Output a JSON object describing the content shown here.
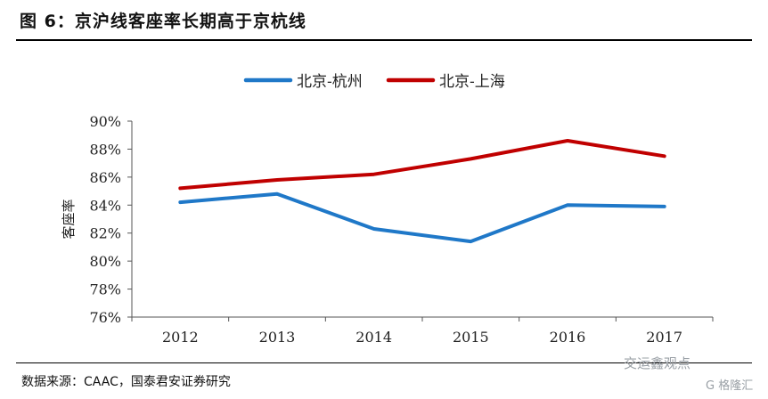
{
  "figure_title": "图 6：京沪线客座率长期高于京杭线",
  "source_note": "数据来源：CAAC，国泰君安证券研究",
  "watermark": "交运鑫观点",
  "watermark2": "G 格隆汇",
  "chart_data": {
    "type": "line",
    "title": "",
    "xlabel": "",
    "ylabel": "客座率",
    "x": [
      "2012",
      "2013",
      "2014",
      "2015",
      "2016",
      "2017"
    ],
    "ylim": [
      76,
      90
    ],
    "yticks": [
      76,
      78,
      80,
      82,
      84,
      86,
      88,
      90
    ],
    "ytick_labels": [
      "76%",
      "78%",
      "80%",
      "82%",
      "84%",
      "86%",
      "88%",
      "90%"
    ],
    "legend_position": "top-center",
    "grid": false,
    "series": [
      {
        "name": "北京-杭州",
        "color": "#1f78c8",
        "values": [
          84.2,
          84.8,
          82.3,
          81.4,
          84.0,
          83.9
        ]
      },
      {
        "name": "北京-上海",
        "color": "#c00000",
        "values": [
          85.2,
          85.8,
          86.2,
          87.3,
          88.6,
          87.5
        ]
      }
    ]
  }
}
